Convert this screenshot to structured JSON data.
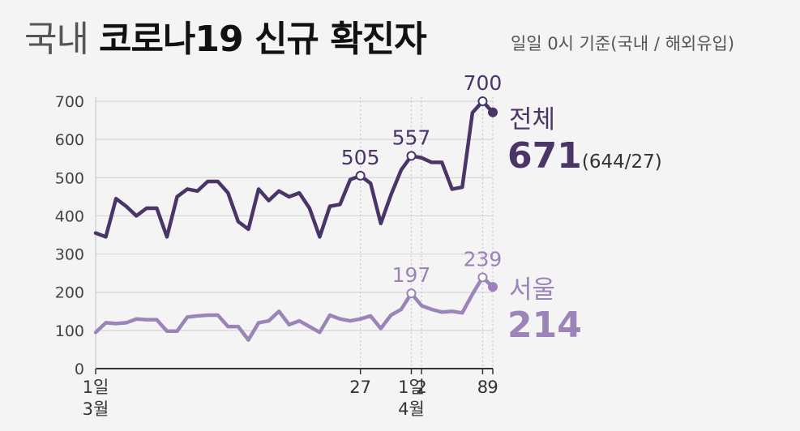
{
  "title_prefix": "국내",
  "title_main": "코로나19 신규 확진자",
  "subtitle": "일일 0시 기준(국내 / 해외유입)",
  "chart_data": {
    "type": "line",
    "ylim": [
      0,
      700
    ],
    "yticks": [
      0,
      100,
      200,
      300,
      400,
      500,
      600,
      700
    ],
    "x": [
      1,
      2,
      3,
      4,
      5,
      6,
      7,
      8,
      9,
      10,
      11,
      12,
      13,
      14,
      15,
      16,
      17,
      18,
      19,
      20,
      21,
      22,
      23,
      24,
      25,
      26,
      27,
      28,
      29,
      30,
      31,
      32,
      33,
      34,
      35,
      36,
      37,
      38,
      39,
      40
    ],
    "xtick_labels": [
      {
        "x": 1,
        "lines": [
          "1일",
          "3월"
        ]
      },
      {
        "x": 27,
        "lines": [
          "27"
        ]
      },
      {
        "x": 32,
        "lines": [
          "1일",
          "4월"
        ]
      },
      {
        "x": 33,
        "lines": [
          "2"
        ]
      },
      {
        "x": 39,
        "lines": [
          "8"
        ]
      },
      {
        "x": 40,
        "lines": [
          "9"
        ]
      }
    ],
    "series": [
      {
        "name": "전체",
        "color": "#4a3568",
        "values": [
          355,
          345,
          445,
          425,
          400,
          420,
          420,
          345,
          450,
          470,
          465,
          490,
          490,
          460,
          385,
          365,
          470,
          440,
          465,
          450,
          460,
          420,
          345,
          425,
          430,
          495,
          505,
          485,
          380,
          455,
          520,
          557,
          552,
          540,
          540,
          470,
          475,
          670,
          700,
          671
        ],
        "annotations": [
          {
            "x": 27,
            "text": "505"
          },
          {
            "x": 32,
            "text": "557"
          },
          {
            "x": 39,
            "text": "700"
          }
        ],
        "end_label": "전체",
        "end_value": "671",
        "end_detail": "(644/27)"
      },
      {
        "name": "서울",
        "color": "#9b84b8",
        "values": [
          95,
          120,
          118,
          120,
          130,
          128,
          128,
          98,
          98,
          135,
          138,
          140,
          140,
          110,
          110,
          75,
          120,
          125,
          150,
          115,
          125,
          110,
          95,
          140,
          130,
          125,
          130,
          138,
          105,
          140,
          155,
          197,
          165,
          155,
          148,
          150,
          146,
          195,
          239,
          214
        ],
        "annotations": [
          {
            "x": 32,
            "text": "197"
          },
          {
            "x": 39,
            "text": "239"
          }
        ],
        "end_label": "서울",
        "end_value": "214"
      }
    ]
  }
}
